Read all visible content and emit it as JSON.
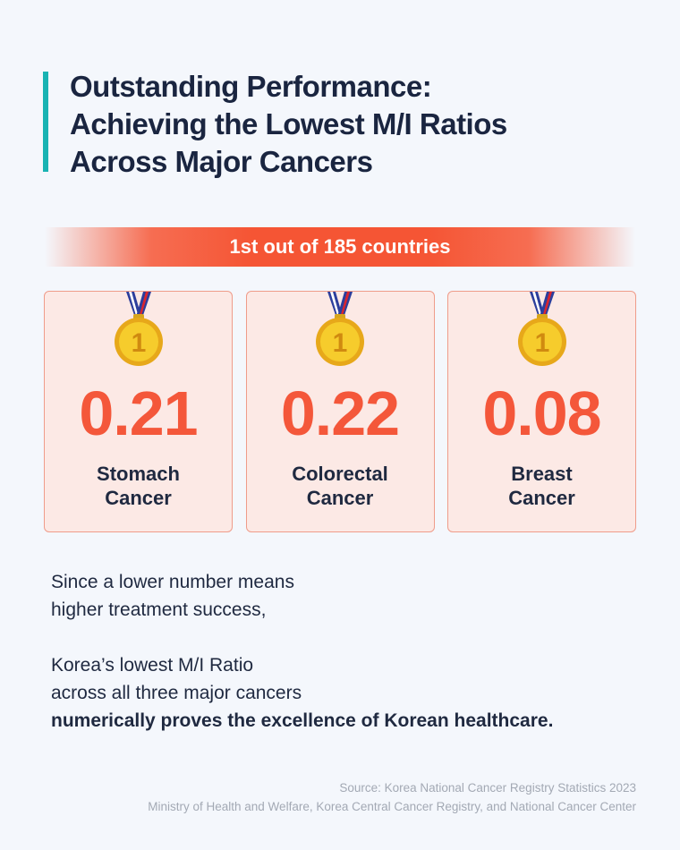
{
  "colors": {
    "background": "#f4f7fc",
    "accent_bar": "#19b3b3",
    "highlight": "#f55534",
    "card_bg": "#fce9e5",
    "medal_gold": "#f2c320"
  },
  "title": {
    "lines": [
      "Outstanding Performance:",
      "Achieving the Lowest M/I Ratios",
      "Across Major Cancers"
    ]
  },
  "banner": {
    "text": "1st out of 185 countries"
  },
  "cards": [
    {
      "icon": "gold-medal-icon",
      "medal_number": "1",
      "ratio": "0.21",
      "label_line1": "Stomach",
      "label_line2": "Cancer"
    },
    {
      "icon": "gold-medal-icon",
      "medal_number": "1",
      "ratio": "0.22",
      "label_line1": "Colorectal",
      "label_line2": "Cancer"
    },
    {
      "icon": "gold-medal-icon",
      "medal_number": "1",
      "ratio": "0.08",
      "label_line1": "Breast",
      "label_line2": "Cancer"
    }
  ],
  "body": {
    "para1": [
      "Since a lower number means",
      "higher treatment success,"
    ],
    "para2": [
      "Korea’s lowest M/I Ratio",
      "across all three major cancers"
    ],
    "para2_bold": "numerically proves the excellence of Korean healthcare."
  },
  "source": {
    "line1": "Source: Korea National Cancer Registry Statistics 2023",
    "line2": "Ministry of Health and Welfare, Korea Central Cancer Registry, and National Cancer Center"
  }
}
